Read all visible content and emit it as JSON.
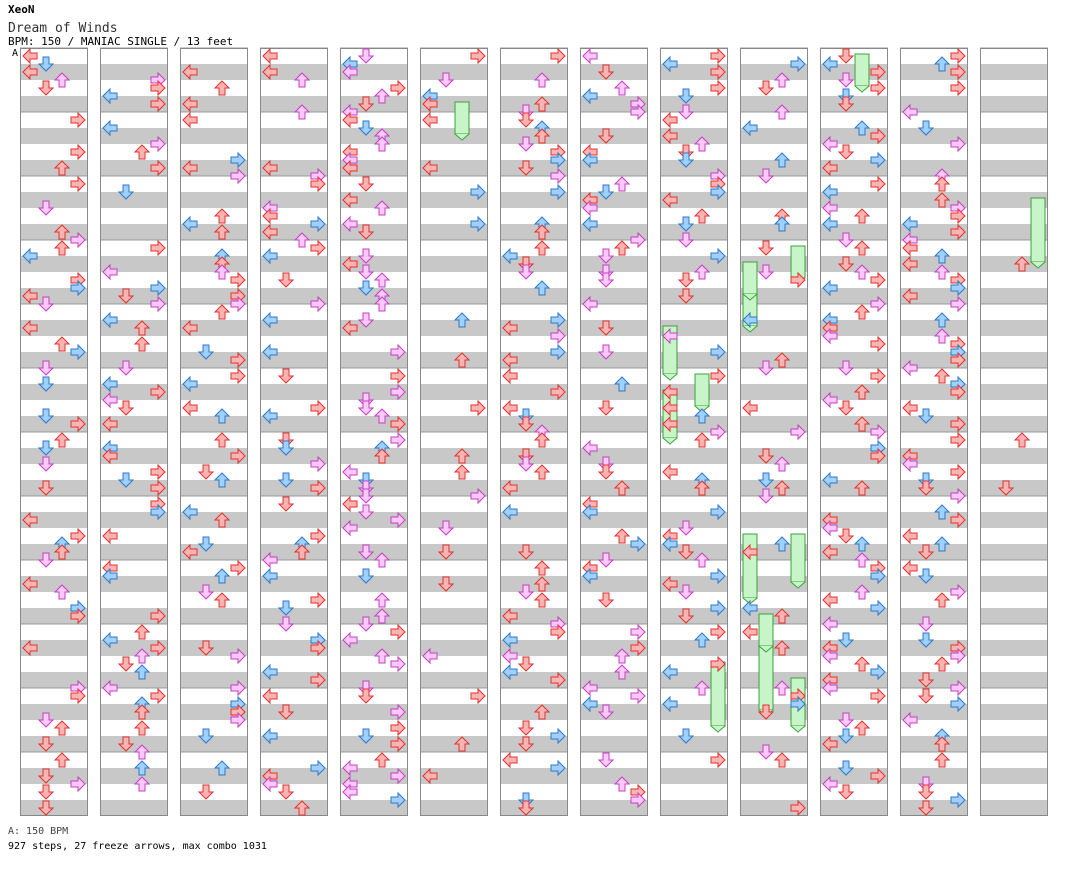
{
  "header": {
    "artist": "XeoN",
    "title": "Dream of Winds",
    "meta": "BPM: 150 / MANIAC SINGLE / 13 feet"
  },
  "bpm_marker": "A",
  "footer": {
    "bpm_line": "A: 150 BPM",
    "summary": "927 steps, 27 freeze arrows, max combo 1031"
  },
  "colors": {
    "red_fill": "#ffb3b3",
    "red_stroke": "#e03030",
    "blue_fill": "#9fd0ff",
    "blue_stroke": "#2c78c8",
    "pink_fill": "#ffc8ff",
    "pink_stroke": "#c040c0",
    "freeze_fill": "#c8f5c8",
    "freeze_stroke": "#3aa03a",
    "band": "#c8c8c8",
    "column_border": "#888888"
  },
  "chart_data": {
    "type": "stepchart",
    "bpm": 150,
    "difficulty": "MANIAC SINGLE",
    "feet": 13,
    "steps": 927,
    "freeze_arrows": 27,
    "max_combo": 1031,
    "columns": 13,
    "measures_per_column": 12,
    "lanes": [
      "left",
      "down",
      "up",
      "right"
    ]
  }
}
